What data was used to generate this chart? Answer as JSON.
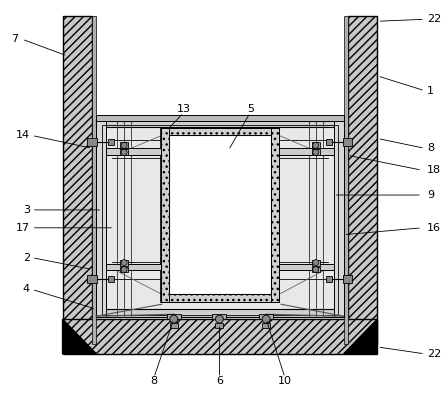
{
  "bg": "#ffffff",
  "fig_w": 4.43,
  "fig_h": 3.97,
  "dpi": 100,
  "wall_fc": "#c8c8c8",
  "wall_hatch": "////",
  "frame_fc": "#e0e0e0",
  "stone_fc": "#f5f5f5",
  "ann_fs": 8.0,
  "ann_lw": 0.6
}
